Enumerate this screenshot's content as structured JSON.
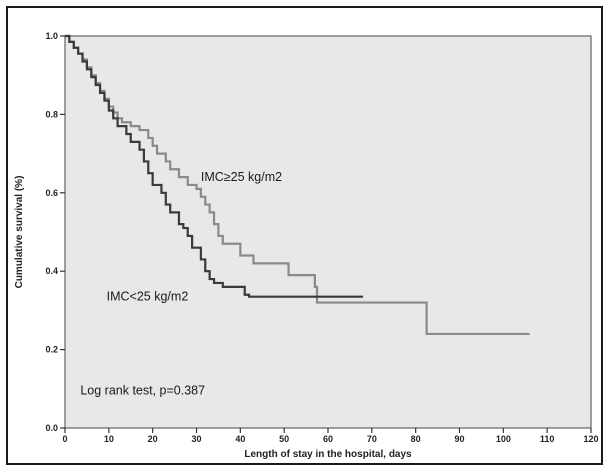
{
  "chart_data": {
    "type": "line",
    "title": "",
    "xlabel": "Length of stay in the hospital, days",
    "ylabel": "Cumulative survival (%)",
    "xlim": [
      0,
      120
    ],
    "ylim": [
      0,
      1.0
    ],
    "xticks": [
      0,
      10,
      20,
      30,
      40,
      50,
      60,
      70,
      80,
      90,
      100,
      110,
      120
    ],
    "yticks": [
      0.0,
      0.2,
      0.4,
      0.6,
      0.8,
      1.0
    ],
    "xtick_labels": [
      "0",
      "10",
      "20",
      "30",
      "40",
      "50",
      "60",
      "70",
      "80",
      "90",
      "100",
      "110",
      "120"
    ],
    "ytick_labels": [
      "0.0",
      "0.2",
      "0.4",
      "0.6",
      "0.8",
      "1.0"
    ],
    "grid": false,
    "background": "#e8e8e8",
    "series": [
      {
        "name": "IMC≥25 kg/m2",
        "color": "#8a8a8a",
        "step": true,
        "points": [
          [
            0,
            1.0
          ],
          [
            1,
            0.985
          ],
          [
            2,
            0.97
          ],
          [
            3,
            0.955
          ],
          [
            4,
            0.94
          ],
          [
            5,
            0.92
          ],
          [
            6,
            0.9
          ],
          [
            7,
            0.88
          ],
          [
            8,
            0.86
          ],
          [
            9,
            0.84
          ],
          [
            10,
            0.82
          ],
          [
            11,
            0.805
          ],
          [
            12,
            0.79
          ],
          [
            13,
            0.78
          ],
          [
            15,
            0.77
          ],
          [
            17,
            0.76
          ],
          [
            19,
            0.74
          ],
          [
            20,
            0.72
          ],
          [
            21,
            0.7
          ],
          [
            23,
            0.68
          ],
          [
            24,
            0.66
          ],
          [
            26,
            0.64
          ],
          [
            28,
            0.62
          ],
          [
            30,
            0.61
          ],
          [
            31,
            0.59
          ],
          [
            32,
            0.57
          ],
          [
            33,
            0.55
          ],
          [
            34,
            0.52
          ],
          [
            35,
            0.49
          ],
          [
            36,
            0.47
          ],
          [
            40,
            0.44
          ],
          [
            43,
            0.42
          ],
          [
            51,
            0.39
          ],
          [
            57,
            0.36
          ],
          [
            57.5,
            0.32
          ],
          [
            82,
            0.32
          ],
          [
            82.5,
            0.24
          ],
          [
            106,
            0.24
          ]
        ]
      },
      {
        "name": "IMC<25 kg/m2",
        "color": "#3a3a3a",
        "step": true,
        "points": [
          [
            0,
            1.0
          ],
          [
            1,
            0.985
          ],
          [
            2,
            0.97
          ],
          [
            3,
            0.955
          ],
          [
            4,
            0.935
          ],
          [
            5,
            0.915
          ],
          [
            6,
            0.895
          ],
          [
            7,
            0.875
          ],
          [
            8,
            0.855
          ],
          [
            9,
            0.835
          ],
          [
            10,
            0.81
          ],
          [
            11,
            0.79
          ],
          [
            12,
            0.77
          ],
          [
            14,
            0.75
          ],
          [
            15,
            0.73
          ],
          [
            17,
            0.71
          ],
          [
            18,
            0.68
          ],
          [
            19,
            0.65
          ],
          [
            20,
            0.62
          ],
          [
            22,
            0.6
          ],
          [
            23,
            0.57
          ],
          [
            24,
            0.55
          ],
          [
            26,
            0.52
          ],
          [
            27,
            0.51
          ],
          [
            28,
            0.49
          ],
          [
            29,
            0.46
          ],
          [
            31,
            0.43
          ],
          [
            32,
            0.4
          ],
          [
            33,
            0.38
          ],
          [
            34,
            0.37
          ],
          [
            36,
            0.36
          ],
          [
            41,
            0.34
          ],
          [
            42,
            0.335
          ],
          [
            68,
            0.335
          ]
        ]
      }
    ],
    "annotations": [
      {
        "text": "IMC≥25 kg/m2",
        "x": 31,
        "y": 0.63
      },
      {
        "text": "IMC<25 kg/m2",
        "x": 9.5,
        "y": 0.325
      },
      {
        "text": "Log rank test, p=0.387",
        "x": 3.5,
        "y": 0.085
      }
    ]
  }
}
